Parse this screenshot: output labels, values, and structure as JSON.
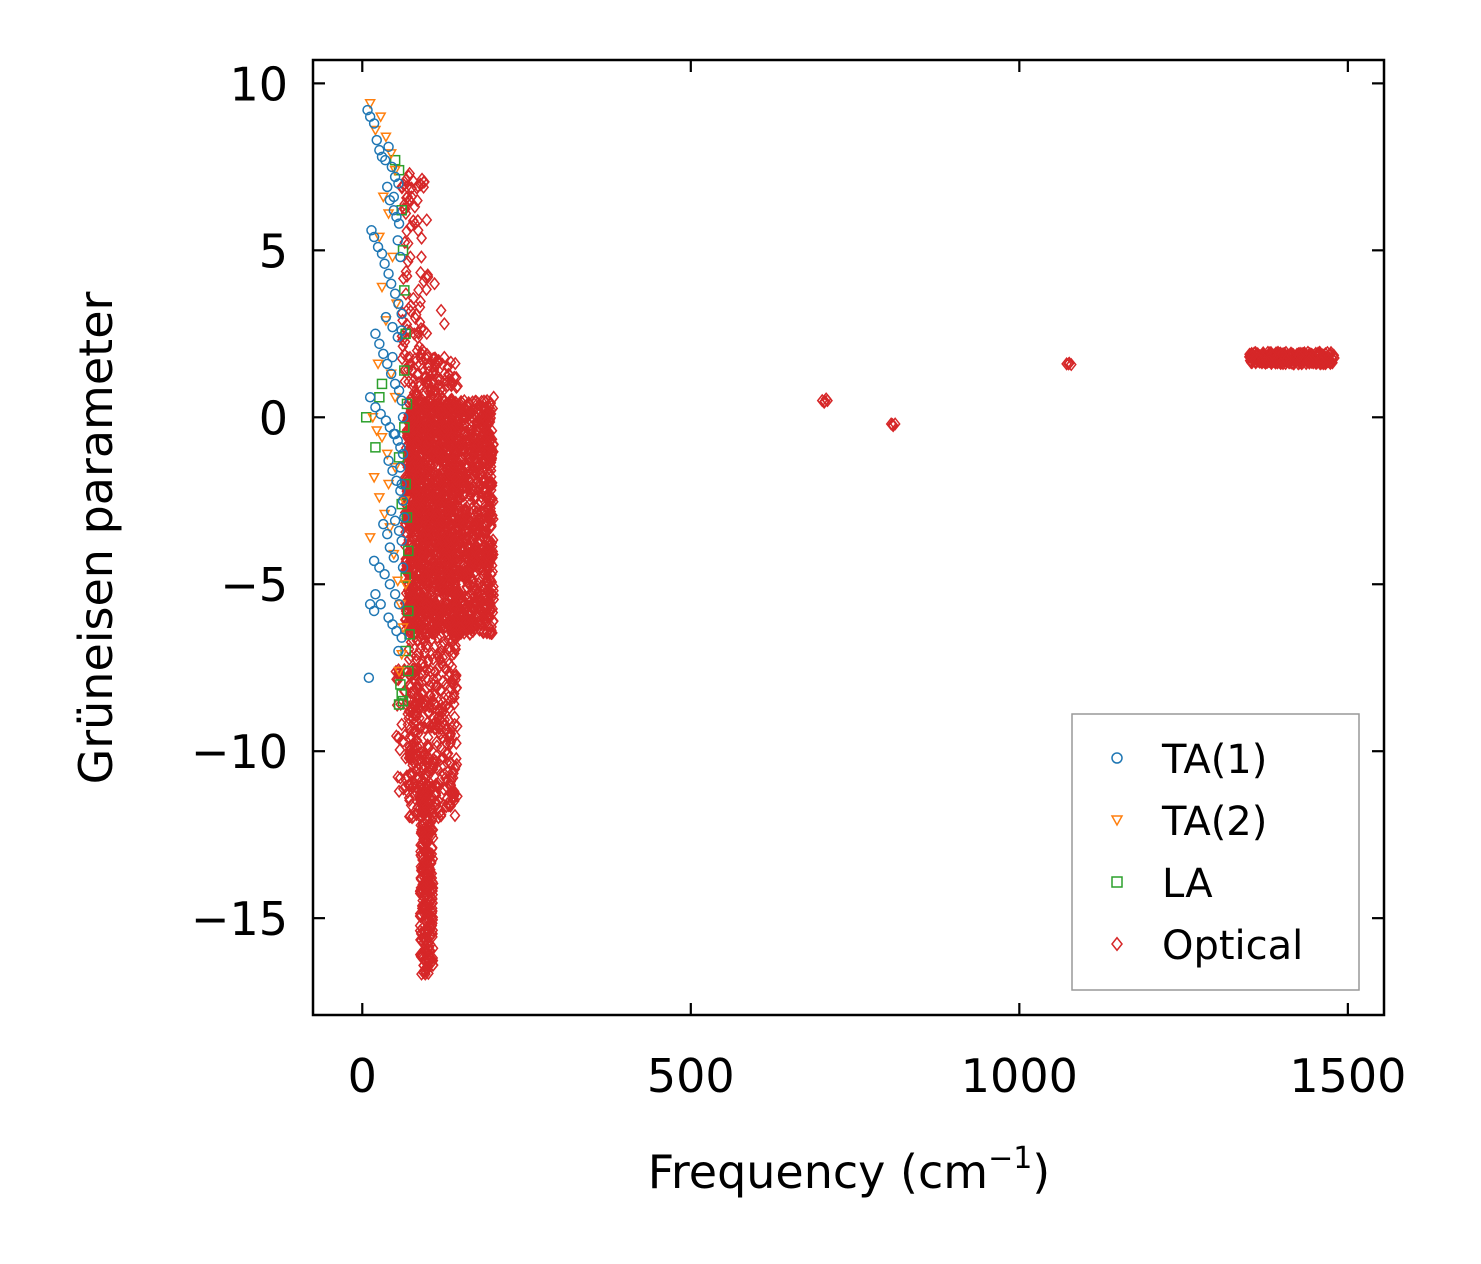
{
  "chart_data": {
    "type": "scatter",
    "title": "",
    "xlabel": "Frequency (cm",
    "xlabel_sup": "−1",
    "xlabel_close": ")",
    "ylabel": "Grüneisen parameter",
    "xlim": [
      -75,
      1555
    ],
    "ylim": [
      -17.9,
      10.7
    ],
    "xticks": [
      0,
      500,
      1000,
      1500
    ],
    "xtick_labels": [
      "0",
      "500",
      "1000",
      "1500"
    ],
    "yticks": [
      10,
      5,
      0,
      -5,
      -10,
      -15
    ],
    "ytick_labels": [
      "10",
      "5",
      "0",
      "−5",
      "−10",
      "−15"
    ],
    "grid": false,
    "legend_position": "lower-right",
    "series": [
      {
        "name": "TA(1)",
        "marker": "circle",
        "color": "#1f77b4",
        "points": [
          [
            8,
            9.2
          ],
          [
            12,
            9.0
          ],
          [
            18,
            8.8
          ],
          [
            22,
            8.3
          ],
          [
            26,
            8.0
          ],
          [
            30,
            7.8
          ],
          [
            35,
            7.7
          ],
          [
            40,
            8.1
          ],
          [
            45,
            7.5
          ],
          [
            50,
            7.2
          ],
          [
            55,
            7.0
          ],
          [
            38,
            6.9
          ],
          [
            42,
            6.5
          ],
          [
            48,
            6.2
          ],
          [
            52,
            6.0
          ],
          [
            56,
            5.8
          ],
          [
            14,
            5.6
          ],
          [
            18,
            5.4
          ],
          [
            24,
            5.1
          ],
          [
            30,
            4.9
          ],
          [
            34,
            4.6
          ],
          [
            40,
            4.3
          ],
          [
            44,
            4.0
          ],
          [
            50,
            3.7
          ],
          [
            55,
            3.4
          ],
          [
            60,
            3.1
          ],
          [
            36,
            3.0
          ],
          [
            46,
            2.7
          ],
          [
            54,
            2.4
          ],
          [
            20,
            2.5
          ],
          [
            26,
            2.2
          ],
          [
            32,
            1.9
          ],
          [
            38,
            1.6
          ],
          [
            44,
            1.3
          ],
          [
            50,
            1.0
          ],
          [
            56,
            0.8
          ],
          [
            60,
            0.5
          ],
          [
            12,
            0.6
          ],
          [
            20,
            0.3
          ],
          [
            28,
            0.1
          ],
          [
            36,
            -0.1
          ],
          [
            42,
            -0.3
          ],
          [
            48,
            -0.5
          ],
          [
            54,
            -0.7
          ],
          [
            58,
            -0.9
          ],
          [
            62,
            -1.1
          ],
          [
            40,
            -1.3
          ],
          [
            46,
            -1.6
          ],
          [
            52,
            -1.9
          ],
          [
            58,
            -2.2
          ],
          [
            62,
            -2.5
          ],
          [
            44,
            -2.8
          ],
          [
            50,
            -3.1
          ],
          [
            56,
            -3.4
          ],
          [
            60,
            -3.7
          ],
          [
            32,
            -3.2
          ],
          [
            38,
            -3.5
          ],
          [
            42,
            -3.9
          ],
          [
            48,
            -4.2
          ],
          [
            18,
            -4.3
          ],
          [
            26,
            -4.5
          ],
          [
            34,
            -4.7
          ],
          [
            42,
            -5.0
          ],
          [
            50,
            -5.3
          ],
          [
            56,
            -5.6
          ],
          [
            20,
            -5.3
          ],
          [
            28,
            -5.6
          ],
          [
            12,
            -5.6
          ],
          [
            18,
            -5.8
          ],
          [
            40,
            -6.0
          ],
          [
            46,
            -6.2
          ],
          [
            52,
            -6.4
          ],
          [
            10,
            -7.8
          ],
          [
            55,
            -7.0
          ],
          [
            60,
            -6.6
          ],
          [
            60,
            -2.0
          ],
          [
            58,
            -1.5
          ],
          [
            62,
            0.0
          ],
          [
            64,
            -3.0
          ],
          [
            50,
            -0.5
          ],
          [
            46,
            1.8
          ],
          [
            60,
            2.6
          ],
          [
            58,
            4.8
          ],
          [
            54,
            5.3
          ],
          [
            48,
            6.6
          ],
          [
            62,
            -4.5
          ]
        ]
      },
      {
        "name": "TA(2)",
        "marker": "triangle-down",
        "color": "#ff7f0e",
        "points": [
          [
            12,
            9.4
          ],
          [
            28,
            9.0
          ],
          [
            20,
            8.6
          ],
          [
            36,
            8.4
          ],
          [
            44,
            7.9
          ],
          [
            50,
            7.4
          ],
          [
            32,
            6.6
          ],
          [
            40,
            6.1
          ],
          [
            26,
            5.4
          ],
          [
            46,
            4.8
          ],
          [
            30,
            3.9
          ],
          [
            52,
            3.4
          ],
          [
            36,
            2.9
          ],
          [
            24,
            1.6
          ],
          [
            44,
            1.3
          ],
          [
            50,
            0.6
          ],
          [
            16,
            0.0
          ],
          [
            22,
            -0.4
          ],
          [
            30,
            -0.6
          ],
          [
            38,
            -1.1
          ],
          [
            18,
            -1.8
          ],
          [
            26,
            -2.4
          ],
          [
            34,
            -2.9
          ],
          [
            12,
            -3.6
          ],
          [
            42,
            -3.3
          ],
          [
            48,
            -4.1
          ],
          [
            54,
            -4.9
          ],
          [
            58,
            -5.6
          ],
          [
            62,
            -6.3
          ],
          [
            60,
            -7.1
          ],
          [
            56,
            -7.6
          ],
          [
            40,
            -2.0
          ],
          [
            50,
            -1.5
          ],
          [
            64,
            -2.5
          ],
          [
            66,
            -5.0
          ]
        ]
      },
      {
        "name": "LA",
        "marker": "square",
        "color": "#2ca02c",
        "points": [
          [
            50,
            7.7
          ],
          [
            56,
            7.4
          ],
          [
            60,
            6.2
          ],
          [
            62,
            5.0
          ],
          [
            64,
            3.8
          ],
          [
            66,
            2.5
          ],
          [
            64,
            1.4
          ],
          [
            30,
            1.0
          ],
          [
            26,
            0.6
          ],
          [
            6,
            0.0
          ],
          [
            20,
            -0.9
          ],
          [
            56,
            -1.2
          ],
          [
            66,
            -2.0
          ],
          [
            68,
            -3.0
          ],
          [
            70,
            -4.0
          ],
          [
            66,
            -4.8
          ],
          [
            70,
            -5.8
          ],
          [
            72,
            -6.5
          ],
          [
            66,
            -7.0
          ],
          [
            70,
            -7.6
          ],
          [
            58,
            -8.0
          ],
          [
            60,
            -8.3
          ],
          [
            56,
            -8.6
          ],
          [
            62,
            -8.5
          ],
          [
            64,
            -0.3
          ],
          [
            60,
            -2.6
          ],
          [
            68,
            0.4
          ]
        ]
      },
      {
        "name": "Optical",
        "marker": "diamond",
        "color": "#d62728",
        "clusters": [
          {
            "x_range": [
              65,
              200
            ],
            "y_range": [
              -6.5,
              0.5
            ],
            "count": 1800
          },
          {
            "x_range": [
              70,
              145
            ],
            "y_range": [
              -12,
              1.8
            ],
            "count": 900
          },
          {
            "x_range": [
              88,
              108
            ],
            "y_range": [
              -16.7,
              -11
            ],
            "count": 280
          },
          {
            "x_range": [
              60,
              100
            ],
            "y_range": [
              1,
              7.3
            ],
            "count": 90
          },
          {
            "x_range": [
              50,
              90
            ],
            "y_range": [
              -11.3,
              -7.5
            ],
            "count": 60
          },
          {
            "x_range": [
              1350,
              1480
            ],
            "y_range": [
              1.6,
              1.95
            ],
            "count": 320
          }
        ],
        "points": [
          [
            700,
            0.5
          ],
          [
            703,
            0.45
          ],
          [
            706,
            0.55
          ],
          [
            708,
            0.5
          ],
          [
            704,
            0.48
          ],
          [
            805,
            -0.2
          ],
          [
            808,
            -0.25
          ],
          [
            811,
            -0.2
          ],
          [
            807,
            -0.22
          ],
          [
            1072,
            1.6
          ],
          [
            1076,
            1.62
          ],
          [
            1079,
            1.58
          ],
          [
            1075,
            1.6
          ],
          [
            200,
            0.6
          ],
          [
            195,
            0.4
          ],
          [
            190,
            0.5
          ],
          [
            110,
            4.0
          ],
          [
            120,
            3.2
          ],
          [
            125,
            2.8
          ],
          [
            130,
            1.5
          ],
          [
            140,
            1.2
          ],
          [
            80,
            6.3
          ],
          [
            75,
            6.6
          ],
          [
            72,
            7.3
          ],
          [
            85,
            5.6
          ],
          [
            90,
            4.8
          ],
          [
            100,
            4.2
          ],
          [
            60,
            -9.2
          ],
          [
            62,
            -9.7
          ],
          [
            66,
            -10.2
          ],
          [
            58,
            -10.8
          ],
          [
            56,
            -11.2
          ]
        ]
      }
    ]
  }
}
